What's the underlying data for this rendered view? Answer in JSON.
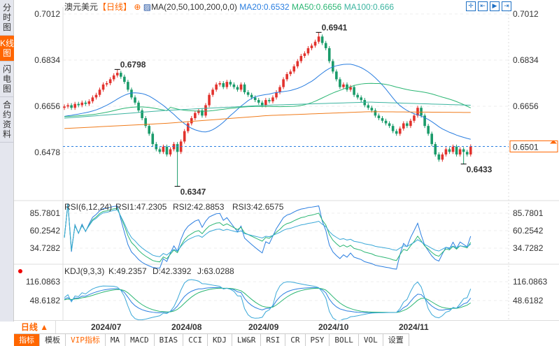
{
  "sidebar": {
    "tabs": [
      "分时图",
      "K线图",
      "闪电图",
      "合约资料"
    ],
    "active": 1
  },
  "header": {
    "symbol": "澳元美元",
    "period": "【日线】",
    "ma_label": "MA(20,50,100,200,0,0)",
    "ma20": "MA20:0.6532",
    "ma50": "MA50:0.6656",
    "ma100": "MA100:0.666"
  },
  "colors": {
    "up": "#e2322d",
    "down": "#1a9b6a",
    "ma20": "#2a7ee0",
    "ma50": "#2bb673",
    "ma100": "#3cb4a0",
    "ma200": "#f07c1c",
    "accent": "#f60"
  },
  "price_axis": [
    "0.7012",
    "0.6834",
    "0.6656",
    "0.6478"
  ],
  "current_price": "0.6501",
  "annotations": {
    "high1": "0.6798",
    "low1": "0.6347",
    "high2": "0.6941",
    "low2": "0.6433"
  },
  "rsi": {
    "label": "RSI(6,12,24)",
    "rsi1": "RSI1:47.2305",
    "rsi2": "RSI2:42.8853",
    "rsi3": "RSI3:42.6575",
    "axis": [
      "85.7801",
      "60.2542",
      "34.7282"
    ]
  },
  "kdj": {
    "label": "KDJ(9,3,3)",
    "k": "K:49.2357",
    "d": "D:42.3392",
    "j": "J:63.0288",
    "axis": [
      "116.0863",
      "48.6182"
    ]
  },
  "timeframe": "日线 ▲",
  "months": [
    "2024/07",
    "2024/08",
    "2024/09",
    "2024/10",
    "2024/11"
  ],
  "tabs": [
    "指标",
    "模板",
    "VIP指标",
    "MA",
    "MACD",
    "BIAS",
    "CCI",
    "KDJ",
    "LW&R",
    "RSI",
    "CR",
    "PSY",
    "BOLL",
    "VOL",
    "设置"
  ],
  "chart_data": {
    "type": "candlestick",
    "title": "澳元美元 日线",
    "ylim": [
      0.63,
      0.704
    ],
    "closes": [
      0.6655,
      0.666,
      0.665,
      0.6665,
      0.666,
      0.667,
      0.6665,
      0.6675,
      0.669,
      0.67,
      0.672,
      0.674,
      0.6745,
      0.676,
      0.6775,
      0.6785,
      0.677,
      0.675,
      0.672,
      0.669,
      0.667,
      0.664,
      0.661,
      0.658,
      0.655,
      0.651,
      0.649,
      0.648,
      0.65,
      0.647,
      0.649,
      0.651,
      0.648,
      0.652,
      0.656,
      0.659,
      0.661,
      0.663,
      0.664,
      0.662,
      0.666,
      0.67,
      0.672,
      0.674,
      0.6745,
      0.673,
      0.675,
      0.674,
      0.673,
      0.672,
      0.674,
      0.671,
      0.67,
      0.669,
      0.668,
      0.667,
      0.666,
      0.668,
      0.6675,
      0.669,
      0.671,
      0.673,
      0.676,
      0.678,
      0.679,
      0.681,
      0.683,
      0.685,
      0.686,
      0.688,
      0.689,
      0.6905,
      0.6925,
      0.69,
      0.688,
      0.683,
      0.679,
      0.676,
      0.673,
      0.674,
      0.672,
      0.673,
      0.67,
      0.669,
      0.668,
      0.666,
      0.665,
      0.664,
      0.662,
      0.661,
      0.66,
      0.659,
      0.658,
      0.656,
      0.655,
      0.657,
      0.659,
      0.658,
      0.66,
      0.662,
      0.665,
      0.662,
      0.658,
      0.655,
      0.651,
      0.647,
      0.645,
      0.647,
      0.649,
      0.648,
      0.65,
      0.647,
      0.649,
      0.648,
      0.647,
      0.6501
    ],
    "extremes": [
      {
        "index": 15,
        "high": 0.6798
      },
      {
        "index": 32,
        "low": 0.6347
      },
      {
        "index": 72,
        "high": 0.6941
      },
      {
        "index": 113,
        "low": 0.6433
      }
    ],
    "ma100": [
      0.661,
      0.664,
      0.666,
      0.6672,
      0.666
    ],
    "ma200": [
      0.657,
      0.659,
      0.662,
      0.6635,
      0.6632
    ]
  }
}
